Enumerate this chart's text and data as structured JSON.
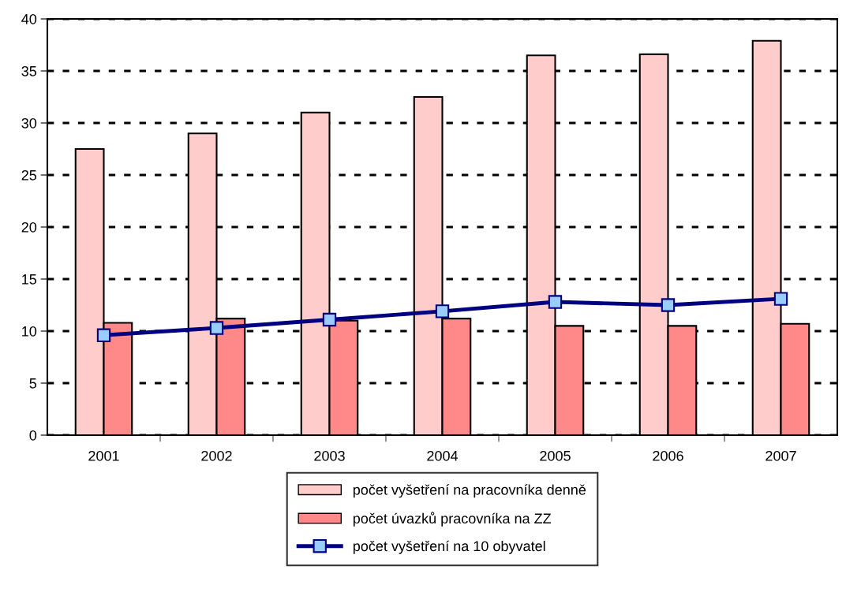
{
  "chart_data": {
    "type": "bar",
    "categories": [
      "2001",
      "2002",
      "2003",
      "2004",
      "2005",
      "2006",
      "2007"
    ],
    "series": [
      {
        "name": "počet vyšetření na pracovníka denně",
        "color": "#ffcccc",
        "values": [
          27.5,
          29.0,
          31.0,
          32.5,
          36.5,
          36.6,
          37.9
        ]
      },
      {
        "name": "počet úvazků pracovníka na ZZ",
        "color": "#ff8888",
        "values": [
          10.8,
          11.2,
          11.0,
          11.2,
          10.5,
          10.5,
          10.7
        ]
      },
      {
        "name": "počet vyšetření na 10 obyvatel",
        "type": "line",
        "color": "#000080",
        "values": [
          9.6,
          10.3,
          11.1,
          11.9,
          12.8,
          12.5,
          13.1
        ]
      }
    ],
    "marker": "square",
    "line_style": "solid",
    "ylim": [
      0,
      40
    ],
    "yticks": [
      0,
      5,
      10,
      15,
      20,
      25,
      30,
      35,
      40
    ],
    "grid": "y",
    "legend": "bottom"
  }
}
